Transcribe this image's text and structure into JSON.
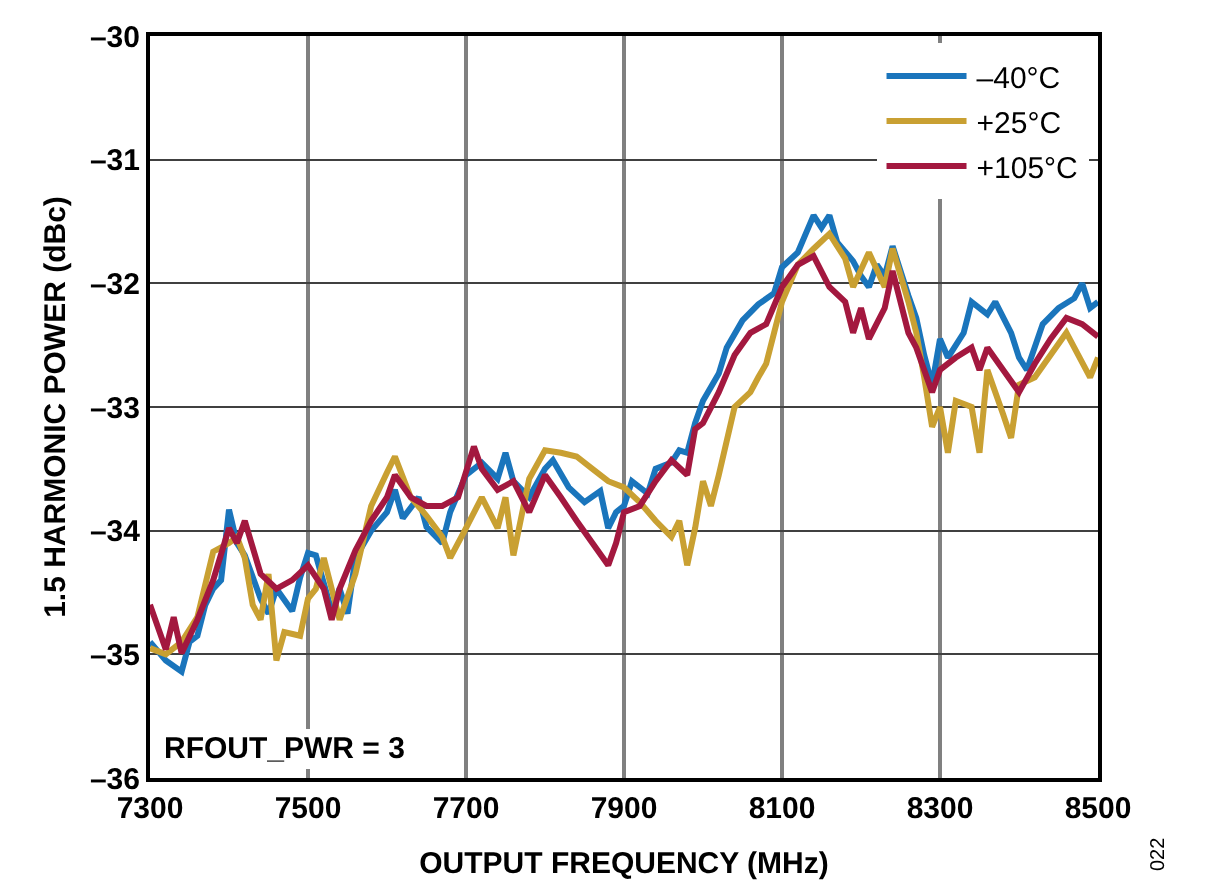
{
  "chart_data": {
    "type": "line",
    "xlabel": "OUTPUT FREQUENCY (MHz)",
    "ylabel": "1.5 HARMONIC POWER (dBc)",
    "xlim": [
      7300,
      8500
    ],
    "xticks": [
      7300,
      7500,
      7700,
      7900,
      8100,
      8300,
      8500
    ],
    "ylim": [
      -36,
      -30
    ],
    "yticks": [
      {
        "value": -36,
        "label": "–36"
      },
      {
        "value": -35,
        "label": "–35"
      },
      {
        "value": -34,
        "label": "–34"
      },
      {
        "value": -33,
        "label": "–33"
      },
      {
        "value": -32,
        "label": "–32"
      },
      {
        "value": -31,
        "label": "–31"
      },
      {
        "value": -30,
        "label": "–30"
      }
    ],
    "grid": true,
    "legend": "top right",
    "marker": "none",
    "line_style": "solid",
    "annotations": [
      "RFOUT_PWR = 3",
      "022"
    ],
    "series": [
      {
        "name": "–40°C",
        "color": "#1a75bc",
        "x": [
          7300,
          7320,
          7340,
          7350,
          7360,
          7370,
          7380,
          7390,
          7400,
          7410,
          7420,
          7440,
          7450,
          7460,
          7480,
          7490,
          7500,
          7510,
          7530,
          7540,
          7550,
          7560,
          7580,
          7600,
          7610,
          7620,
          7640,
          7650,
          7670,
          7680,
          7700,
          7720,
          7740,
          7750,
          7760,
          7780,
          7800,
          7810,
          7830,
          7850,
          7870,
          7880,
          7890,
          7900,
          7910,
          7930,
          7940,
          7960,
          7970,
          7980,
          7990,
          8000,
          8020,
          8030,
          8050,
          8070,
          8090,
          8100,
          8120,
          8130,
          8140,
          8150,
          8160,
          8170,
          8190,
          8200,
          8210,
          8220,
          8230,
          8240,
          8250,
          8260,
          8270,
          8280,
          8290,
          8300,
          8310,
          8330,
          8340,
          8360,
          8370,
          8390,
          8400,
          8410,
          8430,
          8450,
          8470,
          8480,
          8490,
          8500
        ],
        "values": [
          -34.9,
          -35.05,
          -35.14,
          -34.9,
          -34.85,
          -34.6,
          -34.47,
          -34.4,
          -33.83,
          -34.1,
          -34.2,
          -34.55,
          -34.67,
          -34.47,
          -34.65,
          -34.38,
          -34.18,
          -34.2,
          -34.65,
          -34.47,
          -34.67,
          -34.22,
          -34.0,
          -33.85,
          -33.67,
          -33.9,
          -33.73,
          -33.97,
          -34.1,
          -33.85,
          -33.55,
          -33.45,
          -33.58,
          -33.37,
          -33.6,
          -33.73,
          -33.5,
          -33.43,
          -33.65,
          -33.77,
          -33.68,
          -33.98,
          -33.85,
          -33.8,
          -33.6,
          -33.7,
          -33.5,
          -33.45,
          -33.35,
          -33.37,
          -33.13,
          -32.95,
          -32.73,
          -32.52,
          -32.3,
          -32.17,
          -32.08,
          -31.87,
          -31.75,
          -31.6,
          -31.45,
          -31.55,
          -31.45,
          -31.67,
          -31.82,
          -31.94,
          -32.03,
          -31.85,
          -31.94,
          -31.7,
          -31.9,
          -32.1,
          -32.28,
          -32.58,
          -32.82,
          -32.45,
          -32.6,
          -32.4,
          -32.15,
          -32.25,
          -32.15,
          -32.4,
          -32.6,
          -32.7,
          -32.33,
          -32.2,
          -32.12,
          -32.0,
          -32.2,
          -32.15
        ]
      },
      {
        "name": "+25°C",
        "color": "#c9a032",
        "x": [
          7300,
          7320,
          7340,
          7360,
          7380,
          7400,
          7410,
          7420,
          7430,
          7440,
          7450,
          7460,
          7470,
          7490,
          7500,
          7510,
          7520,
          7540,
          7560,
          7580,
          7600,
          7610,
          7630,
          7650,
          7670,
          7680,
          7700,
          7720,
          7740,
          7750,
          7760,
          7780,
          7800,
          7820,
          7840,
          7860,
          7880,
          7900,
          7920,
          7940,
          7960,
          7970,
          7980,
          7990,
          8000,
          8010,
          8020,
          8040,
          8060,
          8070,
          8080,
          8090,
          8100,
          8120,
          8140,
          8160,
          8180,
          8190,
          8210,
          8230,
          8240,
          8260,
          8270,
          8280,
          8290,
          8300,
          8310,
          8320,
          8340,
          8350,
          8360,
          8380,
          8390,
          8400,
          8420,
          8440,
          8460,
          8470,
          8490,
          8500
        ],
        "values": [
          -34.95,
          -35.0,
          -34.9,
          -34.7,
          -34.17,
          -34.1,
          -34.05,
          -34.22,
          -34.6,
          -34.72,
          -34.35,
          -35.05,
          -34.82,
          -34.85,
          -34.55,
          -34.47,
          -34.22,
          -34.72,
          -34.35,
          -33.8,
          -33.53,
          -33.4,
          -33.73,
          -33.88,
          -34.05,
          -34.22,
          -33.98,
          -33.73,
          -33.98,
          -33.73,
          -34.2,
          -33.58,
          -33.35,
          -33.37,
          -33.4,
          -33.5,
          -33.6,
          -33.65,
          -33.77,
          -33.92,
          -34.05,
          -33.92,
          -34.28,
          -33.98,
          -33.6,
          -33.8,
          -33.55,
          -33.0,
          -32.88,
          -32.76,
          -32.65,
          -32.4,
          -32.15,
          -31.85,
          -31.72,
          -31.6,
          -31.8,
          -32.03,
          -31.75,
          -32.03,
          -31.72,
          -32.15,
          -32.4,
          -32.76,
          -33.16,
          -33.0,
          -33.37,
          -32.95,
          -33.0,
          -33.37,
          -32.7,
          -33.06,
          -33.25,
          -32.82,
          -32.76,
          -32.58,
          -32.4,
          -32.52,
          -32.76,
          -32.6
        ]
      },
      {
        "name": "+105°C",
        "color": "#a3183f",
        "x": [
          7300,
          7320,
          7330,
          7340,
          7360,
          7380,
          7400,
          7410,
          7420,
          7440,
          7460,
          7480,
          7500,
          7520,
          7530,
          7540,
          7560,
          7580,
          7600,
          7610,
          7630,
          7650,
          7670,
          7690,
          7710,
          7720,
          7740,
          7760,
          7780,
          7800,
          7820,
          7840,
          7860,
          7880,
          7890,
          7900,
          7920,
          7940,
          7960,
          7980,
          7990,
          8000,
          8020,
          8040,
          8060,
          8080,
          8100,
          8120,
          8140,
          8160,
          8180,
          8190,
          8200,
          8210,
          8230,
          8240,
          8260,
          8270,
          8290,
          8300,
          8320,
          8340,
          8350,
          8360,
          8380,
          8400,
          8420,
          8440,
          8460,
          8480,
          8500
        ],
        "values": [
          -34.6,
          -34.96,
          -34.7,
          -34.99,
          -34.72,
          -34.4,
          -33.98,
          -34.1,
          -33.92,
          -34.35,
          -34.47,
          -34.4,
          -34.28,
          -34.47,
          -34.72,
          -34.47,
          -34.16,
          -33.92,
          -33.73,
          -33.55,
          -33.73,
          -33.8,
          -33.8,
          -33.73,
          -33.32,
          -33.5,
          -33.67,
          -33.6,
          -33.85,
          -33.55,
          -33.73,
          -33.92,
          -34.1,
          -34.28,
          -34.1,
          -33.85,
          -33.8,
          -33.6,
          -33.43,
          -33.55,
          -33.18,
          -33.13,
          -32.88,
          -32.58,
          -32.4,
          -32.33,
          -32.03,
          -31.85,
          -31.78,
          -32.03,
          -32.15,
          -32.4,
          -32.2,
          -32.45,
          -32.2,
          -31.9,
          -32.4,
          -32.52,
          -32.88,
          -32.7,
          -32.6,
          -32.52,
          -32.7,
          -32.52,
          -32.7,
          -32.88,
          -32.65,
          -32.45,
          -32.28,
          -32.33,
          -32.43
        ]
      }
    ]
  }
}
